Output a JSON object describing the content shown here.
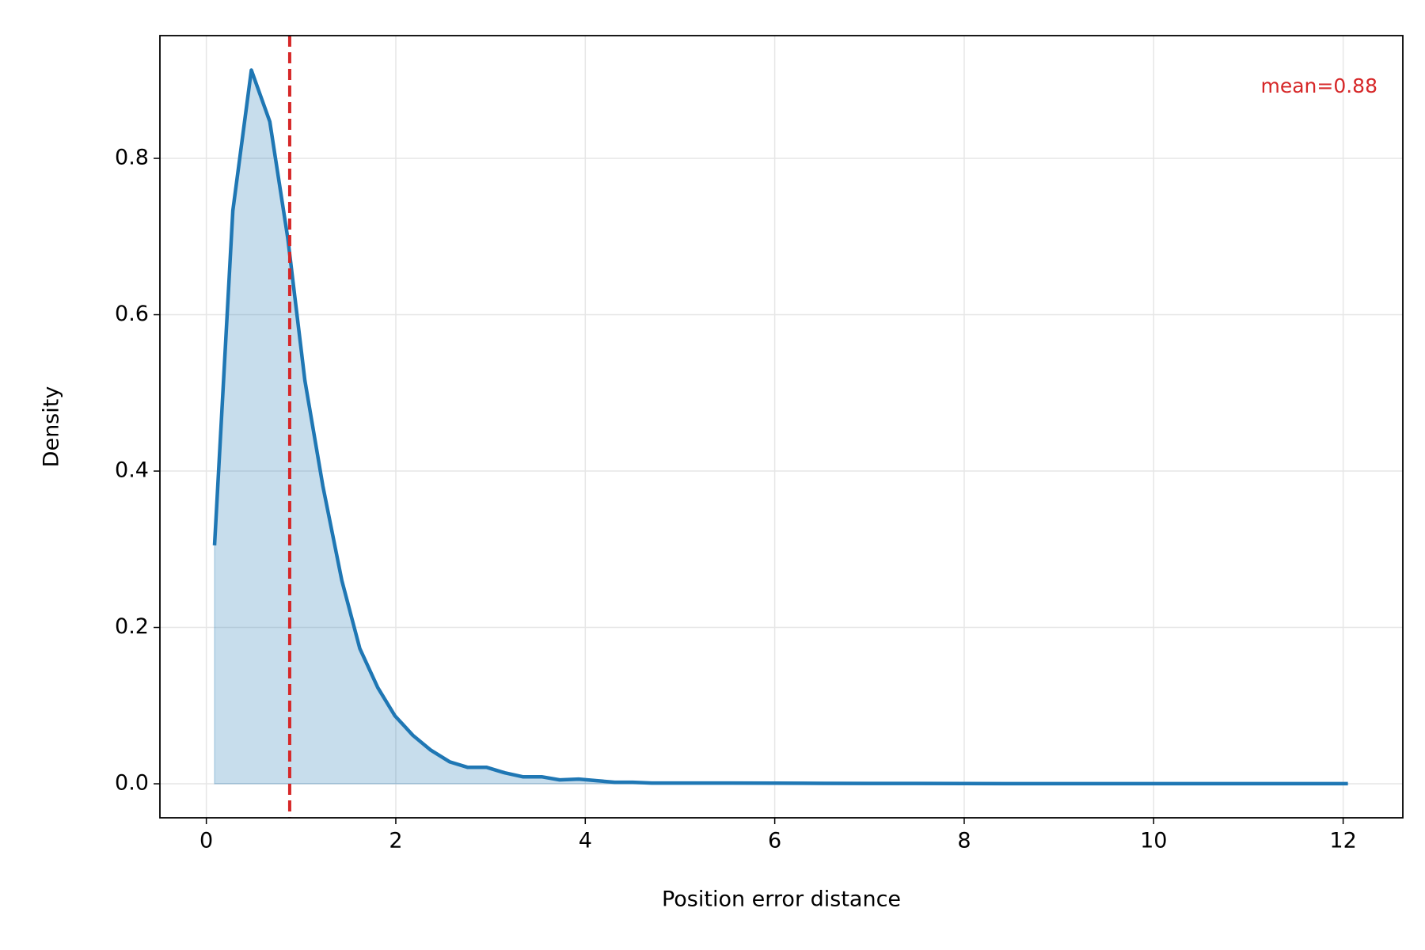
{
  "chart_data": {
    "type": "area",
    "x_label": "Position error distance",
    "y_label": "Density",
    "x": [
      0.087,
      0.28,
      0.475,
      0.67,
      0.86,
      1.04,
      1.23,
      1.43,
      1.62,
      1.81,
      1.99,
      2.18,
      2.37,
      2.57,
      2.76,
      2.96,
      3.15,
      3.34,
      3.54,
      3.73,
      3.93,
      4.12,
      4.31,
      4.5,
      4.7,
      5.0,
      5.5,
      6.0,
      6.5,
      7.0,
      7.5,
      8.0,
      9.0,
      10.0,
      11.0,
      12.05
    ],
    "series": [
      {
        "color": "#1f77b4",
        "values": [
          0.305,
          0.733,
          0.913,
          0.847,
          0.698,
          0.516,
          0.381,
          0.26,
          0.173,
          0.123,
          0.087,
          0.062,
          0.043,
          0.028,
          0.021,
          0.021,
          0.014,
          0.009,
          0.009,
          0.005,
          0.006,
          0.004,
          0.002,
          0.002,
          0.001,
          0.001,
          0.001,
          0.0008,
          0.0005,
          0.0004,
          0.0004,
          0.0002,
          0.0001,
          0.0001,
          0.0001,
          0.0001
        ]
      }
    ],
    "mean": 0.88,
    "mean_color": "#d62728",
    "annotation": "mean=0.88",
    "xlim": [
      -0.49,
      12.63
    ],
    "ylim": [
      -0.0435,
      0.957
    ],
    "xticks": [
      0,
      2,
      4,
      6,
      8,
      10,
      12
    ],
    "yticks": [
      {
        "value": 0,
        "label": "0.0"
      },
      {
        "value": 0.2,
        "label": "0.2"
      },
      {
        "value": 0.4,
        "label": "0.4"
      },
      {
        "value": 0.6,
        "label": "0.6"
      },
      {
        "value": 0.8,
        "label": "0.8"
      }
    ],
    "grid": true
  }
}
